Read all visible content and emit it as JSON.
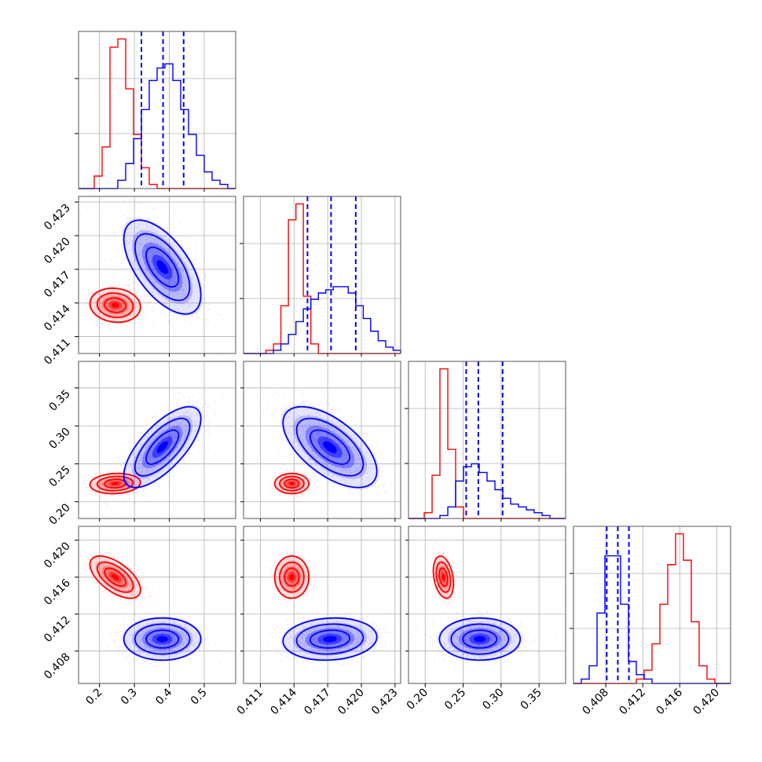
{
  "chart_data": {
    "type": "corner",
    "grid": true,
    "colors": {
      "red": "#ff0000",
      "blue": "#0000ff"
    },
    "params": [
      {
        "id": "p1",
        "range": [
          0.14,
          0.59
        ],
        "ticks": [
          "0.2",
          "0.3",
          "0.4",
          "0.5"
        ]
      },
      {
        "id": "p2",
        "range": [
          0.4095,
          0.4235
        ],
        "ticks": [
          "0.411",
          "0.414",
          "0.417",
          "0.420",
          "0.423"
        ]
      },
      {
        "id": "p3",
        "range": [
          0.178,
          0.385
        ],
        "ticks": [
          "0.20",
          "0.25",
          "0.30",
          "0.35"
        ]
      },
      {
        "id": "p4",
        "range": [
          0.4045,
          0.4215
        ],
        "ticks": [
          "0.408",
          "0.412",
          "0.416",
          "0.420"
        ]
      }
    ],
    "series": [
      {
        "color": "red",
        "means": [
          0.245,
          0.4138,
          0.224,
          0.416
        ],
        "sds": [
          0.038,
          0.0008,
          0.007,
          0.0012
        ]
      },
      {
        "color": "blue",
        "means": [
          0.38,
          0.4172,
          0.272,
          0.4093
        ],
        "sds": [
          0.058,
          0.0022,
          0.028,
          0.0012
        ],
        "quantiles": [
          [
            0.32,
            0.382,
            0.441
          ],
          [
            0.4152,
            0.4173,
            0.4195
          ],
          [
            0.254,
            0.27,
            0.302
          ],
          [
            0.4081,
            0.4093,
            0.4105
          ]
        ]
      }
    ],
    "correlations": {
      "red": {
        "1-0": -0.1,
        "2-0": 0.1,
        "2-1": 0.0,
        "3-0": -0.6,
        "3-1": 0.0,
        "3-2": -0.3
      },
      "blue": {
        "1-0": -0.6,
        "2-0": 0.7,
        "2-1": -0.6,
        "3-0": 0.0,
        "3-1": 0.1,
        "3-2": 0.0
      }
    },
    "histograms": [
      {
        "param": "p1",
        "bin_edges": [
          0.14,
          0.1625,
          0.185,
          0.2075,
          0.23,
          0.2525,
          0.275,
          0.2975,
          0.32,
          0.3425,
          0.365,
          0.3875,
          0.41,
          0.4325,
          0.455,
          0.4775,
          0.5,
          0.5225,
          0.545,
          0.5675,
          0.59
        ],
        "red": [
          0,
          0,
          3,
          10,
          34,
          36,
          24,
          13,
          5,
          1,
          0,
          0,
          0,
          0,
          0,
          0,
          0,
          0,
          0,
          0
        ],
        "blue": [
          0,
          0,
          0,
          0,
          0,
          2,
          6,
          12,
          19,
          26,
          29,
          30,
          26,
          19,
          13,
          8,
          4,
          2,
          1,
          0
        ]
      },
      {
        "param": "p2",
        "bin_edges": [
          0.4095,
          0.41017,
          0.41083,
          0.4115,
          0.41217,
          0.41283,
          0.4135,
          0.41417,
          0.41483,
          0.4155,
          0.41617,
          0.41683,
          0.4175,
          0.41817,
          0.41883,
          0.4195,
          0.42017,
          0.42083,
          0.4215,
          0.42217,
          0.42283,
          0.4235
        ],
        "red": [
          0,
          0,
          0,
          1,
          3,
          15,
          42,
          47,
          18,
          3,
          0,
          0,
          0,
          0,
          0,
          0,
          0,
          0,
          0,
          0,
          0
        ],
        "blue": [
          0,
          0,
          0,
          0,
          1,
          3,
          6,
          10,
          14,
          17,
          19,
          20,
          21,
          21,
          19,
          15,
          11,
          7,
          4,
          2,
          1
        ]
      },
      {
        "param": "p3",
        "bin_edges": [
          0.178,
          0.1884,
          0.1987,
          0.2091,
          0.2194,
          0.2298,
          0.2401,
          0.2505,
          0.2608,
          0.2712,
          0.2815,
          0.2919,
          0.3022,
          0.3126,
          0.3229,
          0.3333,
          0.3436,
          0.354,
          0.3643,
          0.3747,
          0.385
        ],
        "red": [
          0,
          0,
          2,
          15,
          52,
          24,
          4,
          0,
          0,
          0,
          0,
          0,
          0,
          0,
          0,
          0,
          0,
          0,
          0,
          0
        ],
        "blue": [
          0,
          0,
          0,
          0,
          1,
          4,
          13,
          18,
          19,
          16,
          13,
          10,
          7,
          5,
          4,
          3,
          2,
          1,
          0,
          0
        ]
      },
      {
        "param": "p4",
        "bin_edges": [
          0.4045,
          0.40535,
          0.4062,
          0.40705,
          0.4079,
          0.40875,
          0.4096,
          0.41045,
          0.4113,
          0.41215,
          0.413,
          0.41385,
          0.4147,
          0.41555,
          0.4164,
          0.41725,
          0.4181,
          0.41895,
          0.4198,
          0.42065,
          0.4215
        ],
        "red": [
          0,
          0,
          0,
          0,
          0,
          0,
          0,
          0,
          1,
          3,
          9,
          18,
          27,
          34,
          28,
          14,
          4,
          1,
          0,
          0
        ],
        "blue": [
          0,
          1,
          4,
          16,
          29,
          29,
          18,
          5,
          2,
          1,
          0,
          0,
          0,
          0,
          0,
          0,
          0,
          0,
          0,
          0
        ]
      }
    ]
  }
}
